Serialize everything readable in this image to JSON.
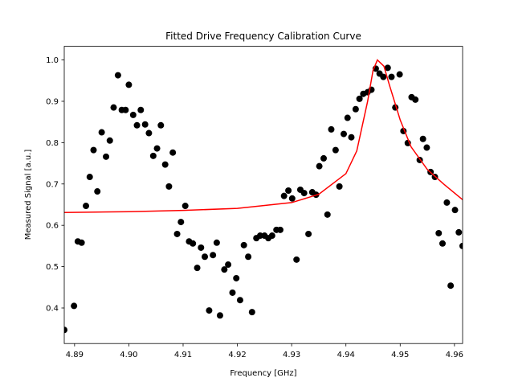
{
  "chart_data": {
    "type": "scatter",
    "title": "Fitted Drive Frequency Calibration Curve",
    "xlabel": "Frequency [GHz]",
    "ylabel": "Measured Signal [a.u.]",
    "xlim": [
      4.8881,
      4.9615
    ],
    "ylim": [
      0.314,
      1.033
    ],
    "xticks": [
      4.89,
      {
        "value": 4.9,
        "label": "4.90"
      },
      4.91,
      4.92,
      4.93,
      4.94,
      4.95,
      4.96
    ],
    "yticks": [
      0.4,
      0.5,
      0.6,
      0.7,
      0.8,
      0.9,
      {
        "value": 1,
        "label": "1.0"
      }
    ],
    "grid": false,
    "series": [
      {
        "type": "scatter",
        "color": "#000000",
        "x": [
          4.8881,
          4.8899,
          4.8906,
          4.8913,
          4.8921,
          4.8928,
          4.8935,
          4.8942,
          4.895,
          4.8958,
          4.8965,
          4.8972,
          4.898,
          4.8987,
          4.8994,
          4.9,
          4.9008,
          4.9015,
          4.9022,
          4.903,
          4.9037,
          4.9045,
          4.9052,
          4.9059,
          4.9067,
          4.9074,
          4.9081,
          4.9089,
          4.9096,
          4.9104,
          4.9111,
          4.9118,
          4.9126,
          4.9133,
          4.914,
          4.9148,
          4.9155,
          4.9162,
          4.9168,
          4.9176,
          4.9183,
          4.9191,
          4.9198,
          4.9205,
          4.9212,
          4.922,
          4.9227,
          4.9235,
          4.9242,
          4.925,
          4.9257,
          4.9264,
          4.9272,
          4.9279,
          4.9286,
          4.9294,
          4.9301,
          4.9309,
          4.9316,
          4.9323,
          4.9331,
          4.9338,
          4.9345,
          4.9351,
          4.9359,
          4.9366,
          4.9373,
          4.9381,
          4.9388,
          4.9396,
          4.9403,
          4.941,
          4.9418,
          4.9425,
          4.9432,
          4.944,
          4.9447,
          4.9455,
          4.9462,
          4.9469,
          4.9477,
          4.9484,
          4.9491,
          4.9499,
          4.9506,
          4.9514,
          4.9521,
          4.9528,
          4.9536,
          4.9542,
          4.9549,
          4.9556,
          4.9564,
          4.9571,
          4.9578,
          4.9586,
          4.9593,
          4.9601,
          4.9608,
          4.9615
        ],
        "y": [
          0.347,
          0.405,
          0.561,
          0.558,
          0.647,
          0.717,
          0.782,
          0.682,
          0.825,
          0.766,
          0.805,
          0.885,
          0.963,
          0.879,
          0.879,
          0.94,
          0.867,
          0.842,
          0.879,
          0.844,
          0.823,
          0.768,
          0.786,
          0.842,
          0.747,
          0.694,
          0.776,
          0.579,
          0.608,
          0.647,
          0.561,
          0.556,
          0.497,
          0.546,
          0.524,
          0.394,
          0.528,
          0.558,
          0.382,
          0.493,
          0.505,
          0.437,
          0.472,
          0.419,
          0.552,
          0.524,
          0.39,
          0.569,
          0.575,
          0.575,
          0.569,
          0.575,
          0.589,
          0.589,
          0.671,
          0.684,
          0.665,
          0.517,
          0.686,
          0.678,
          0.579,
          0.68,
          0.674,
          0.743,
          0.762,
          0.626,
          0.832,
          0.782,
          0.694,
          0.821,
          0.86,
          0.813,
          0.881,
          0.906,
          0.918,
          0.922,
          0.928,
          0.979,
          0.967,
          0.959,
          0.981,
          0.959,
          0.885,
          0.965,
          0.828,
          0.799,
          0.91,
          0.904,
          0.758,
          0.809,
          0.788,
          0.729,
          0.717,
          0.581,
          0.556,
          0.655,
          0.454,
          0.637,
          0.583,
          0.55
        ]
      },
      {
        "type": "line",
        "color": "#ff0000",
        "x": [
          4.8881,
          4.9,
          4.91,
          4.92,
          4.93,
          4.935,
          4.94,
          4.942,
          4.944,
          4.945,
          4.9458,
          4.947,
          4.948,
          4.95,
          4.952,
          4.955,
          4.958,
          4.9615
        ],
        "y": [
          0.631,
          0.633,
          0.636,
          0.641,
          0.655,
          0.675,
          0.725,
          0.78,
          0.9,
          0.975,
          1.0,
          0.985,
          0.94,
          0.855,
          0.79,
          0.735,
          0.7,
          0.662
        ]
      }
    ]
  }
}
